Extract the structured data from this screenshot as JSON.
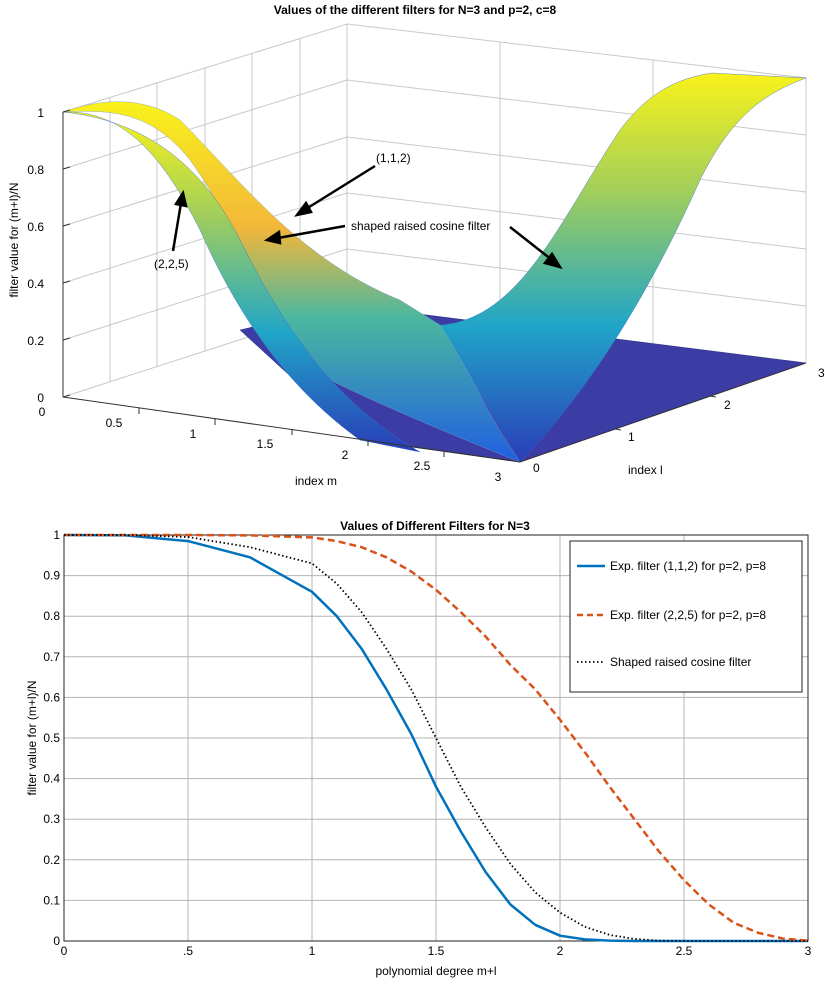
{
  "chart_data": [
    {
      "type": "surface",
      "title": "Values of the different filters for N=3 and p=2, c=8",
      "xlabel": "index m",
      "ylabel": "index l",
      "zlabel": "filter value for (m+l)/N",
      "xlim": [
        0,
        3
      ],
      "ylim": [
        0,
        3
      ],
      "zlim": [
        0,
        1
      ],
      "x_ticks": [
        "0",
        "0.5",
        "1",
        "1.5",
        "2",
        "2.5",
        "3"
      ],
      "y_ticks": [
        "0",
        "1",
        "2",
        "3"
      ],
      "z_ticks": [
        "0",
        "0.2",
        "0.4",
        "0.6",
        "0.8",
        "1"
      ],
      "grid": true,
      "colormap": "parula",
      "annotations": [
        "(1,1,2)",
        "(2,2,5)",
        "shaped raised cosine filter"
      ]
    },
    {
      "type": "line",
      "title": "Values of Different Filters for N=3",
      "xlabel": "polynomial degree m+l",
      "ylabel": "filter value for (m+l)/N",
      "xlim": [
        0,
        3
      ],
      "ylim": [
        0,
        1
      ],
      "x_ticks": [
        "0",
        ".5",
        "1",
        "1.5",
        "2",
        "2.5",
        "3"
      ],
      "y_ticks": [
        "0",
        "0.1",
        "0.2",
        "0.3",
        "0.4",
        "0.5",
        "0.6",
        "0.7",
        "0.8",
        "0.9",
        "1"
      ],
      "grid": true,
      "legend_position": "top-right",
      "x": [
        0,
        0.25,
        0.5,
        0.75,
        1.0,
        1.1,
        1.2,
        1.3,
        1.4,
        1.5,
        1.6,
        1.7,
        1.8,
        1.9,
        2.0,
        2.1,
        2.2,
        2.3,
        2.4,
        2.5,
        2.6,
        2.7,
        2.8,
        2.9,
        3.0
      ],
      "series": [
        {
          "name": "Exp. filter (1,1,2) for p=2, p=8",
          "color": "#0072BD",
          "style": "solid",
          "values": [
            1.0,
            0.999,
            0.985,
            0.945,
            0.86,
            0.8,
            0.72,
            0.62,
            0.51,
            0.38,
            0.27,
            0.17,
            0.09,
            0.04,
            0.013,
            0.004,
            0.001,
            0.0,
            0.0,
            0.0,
            0.0,
            0.0,
            0.0,
            0.0,
            0.0
          ]
        },
        {
          "name": "Exp. filter (2,2,5) for p=2, p=8",
          "color": "#D95319",
          "style": "dashed",
          "values": [
            1.0,
            1.0,
            1.0,
            0.999,
            0.994,
            0.985,
            0.97,
            0.945,
            0.91,
            0.865,
            0.81,
            0.75,
            0.68,
            0.62,
            0.545,
            0.465,
            0.38,
            0.3,
            0.22,
            0.15,
            0.09,
            0.045,
            0.02,
            0.006,
            0.001
          ]
        },
        {
          "name": "Shaped raised cosine filter",
          "color": "#000000",
          "style": "dotted",
          "values": [
            1.0,
            1.0,
            0.995,
            0.97,
            0.93,
            0.88,
            0.81,
            0.72,
            0.62,
            0.5,
            0.38,
            0.28,
            0.19,
            0.12,
            0.07,
            0.035,
            0.015,
            0.005,
            0.001,
            0.0,
            0.0,
            0.0,
            0.0,
            0.0,
            0.0
          ]
        }
      ]
    }
  ]
}
